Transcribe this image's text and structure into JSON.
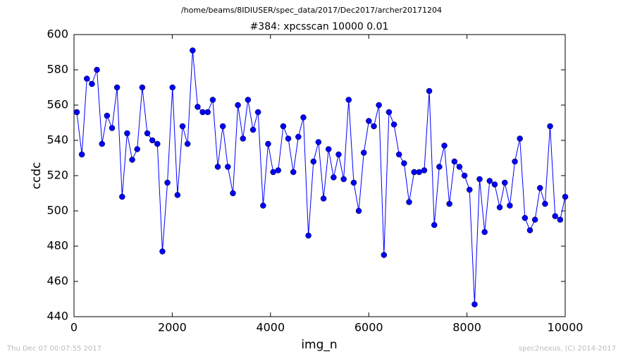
{
  "chart_data": {
    "type": "line",
    "header": "/home/beams/8IDIUSER/spec_data/2017/Dec2017/archer20171204",
    "title": "#384: xpcsscan 10000 0.01",
    "x_label": "img_n",
    "y_label": "ccdc",
    "footer_left": "Thu Dec 07 00:07:55 2017",
    "footer_right": "spec2nexus, (C) 2014-2017",
    "color": "#0000ff",
    "xlim": [
      0,
      10000
    ],
    "xticks": [
      0,
      2000,
      4000,
      6000,
      8000,
      10000
    ],
    "ylim": [
      440,
      600
    ],
    "yticks": [
      440,
      460,
      480,
      500,
      520,
      540,
      560,
      580,
      600
    ],
    "x": [
      57,
      160,
      262,
      365,
      467,
      570,
      672,
      775,
      877,
      980,
      1082,
      1185,
      1287,
      1390,
      1492,
      1595,
      1697,
      1800,
      1902,
      2005,
      2107,
      2210,
      2312,
      2415,
      2517,
      2620,
      2722,
      2825,
      2927,
      3030,
      3132,
      3235,
      3337,
      3440,
      3542,
      3645,
      3747,
      3850,
      3952,
      4055,
      4157,
      4260,
      4362,
      4465,
      4567,
      4670,
      4772,
      4875,
      4977,
      5080,
      5182,
      5285,
      5387,
      5490,
      5592,
      5695,
      5797,
      5900,
      6002,
      6105,
      6207,
      6310,
      6412,
      6515,
      6617,
      6720,
      6822,
      6925,
      7027,
      7130,
      7232,
      7335,
      7437,
      7540,
      7642,
      7745,
      7847,
      7950,
      8052,
      8155,
      8257,
      8360,
      8462,
      8565,
      8667,
      8770,
      8872,
      8975,
      9077,
      9180,
      9282,
      9385,
      9487,
      9590,
      9692,
      9795,
      9897,
      10000
    ],
    "values": [
      556,
      532,
      575,
      572,
      580,
      538,
      554,
      547,
      570,
      508,
      544,
      529,
      535,
      570,
      544,
      540,
      538,
      477,
      516,
      570,
      509,
      548,
      538,
      591,
      559,
      556,
      556,
      563,
      525,
      548,
      525,
      510,
      560,
      541,
      563,
      546,
      556,
      503,
      538,
      522,
      523,
      548,
      541,
      522,
      542,
      553,
      486,
      528,
      539,
      507,
      535,
      519,
      532,
      518,
      563,
      516,
      500,
      533,
      551,
      548,
      560,
      475,
      556,
      549,
      532,
      527,
      505,
      522,
      522,
      523,
      568,
      492,
      525,
      537,
      504,
      528,
      525,
      520,
      512,
      447,
      518,
      488,
      517,
      515,
      502,
      516,
      503,
      528,
      541,
      496,
      489,
      495,
      513,
      504,
      548,
      497,
      495,
      508
    ]
  }
}
